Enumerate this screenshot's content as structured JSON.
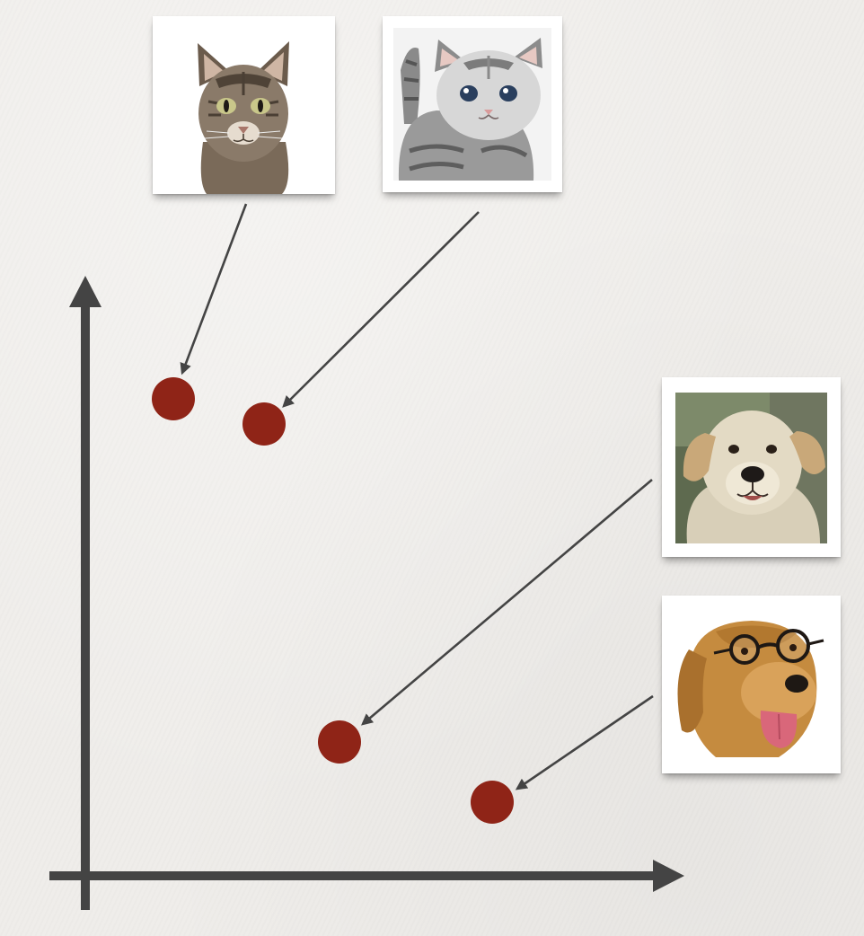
{
  "diagram": {
    "colors": {
      "point": "#8f2417",
      "axis": "#444444",
      "arrow": "#444444",
      "background": "#efedea"
    },
    "items": [
      {
        "id": "cat-tabby",
        "picture": "tabby-cat-photo",
        "kind": "cat"
      },
      {
        "id": "cat-kitten",
        "picture": "gray-kitten-photo",
        "kind": "cat"
      },
      {
        "id": "dog-puppy",
        "picture": "labrador-puppy-photo",
        "kind": "dog"
      },
      {
        "id": "dog-golden",
        "picture": "golden-retriever-with-glasses-photo",
        "kind": "dog"
      }
    ]
  }
}
